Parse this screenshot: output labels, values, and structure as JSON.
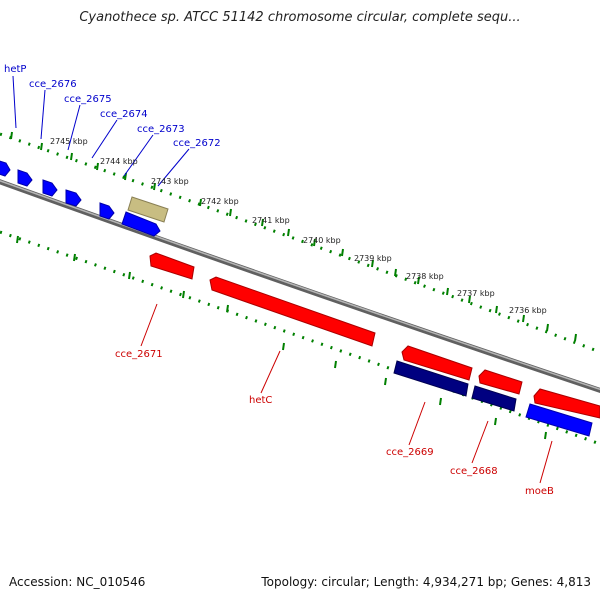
{
  "title": "Cyanothece sp. ATCC 51142 chromosome circular, complete sequ...",
  "footer": {
    "accession": "Accession: NC_010546",
    "topology": "Topology: circular; Length: 4,934,271 bp; Genes: 4,813"
  },
  "colors": {
    "forward_gene": "#0000ff",
    "forward_gene_alt": "#000080",
    "reverse_gene": "#ff0000",
    "highlight_gene": "#c8bd82",
    "backbone": "#8a8a8a",
    "ticks": "#008000",
    "forward_label": "#0000cc",
    "reverse_label": "#cc0000"
  },
  "ticks": {
    "labels": [
      "2745 kbp",
      "2744 kbp",
      "2743 kbp",
      "2742 kbp",
      "2741 kbp",
      "2740 kbp",
      "2739 kbp",
      "2738 kbp",
      "2737 kbp",
      "2736 kbp"
    ]
  },
  "genes_forward": [
    {
      "label": "hetP"
    },
    {
      "label": "cce_2676"
    },
    {
      "label": "cce_2675"
    },
    {
      "label": "cce_2674"
    },
    {
      "label": "cce_2673"
    },
    {
      "label": "cce_2672"
    }
  ],
  "genes_reverse": [
    {
      "label": "cce_2671"
    },
    {
      "label": "hetC"
    },
    {
      "label": "cce_2669"
    },
    {
      "label": "cce_2668"
    },
    {
      "label": "moeB"
    }
  ]
}
